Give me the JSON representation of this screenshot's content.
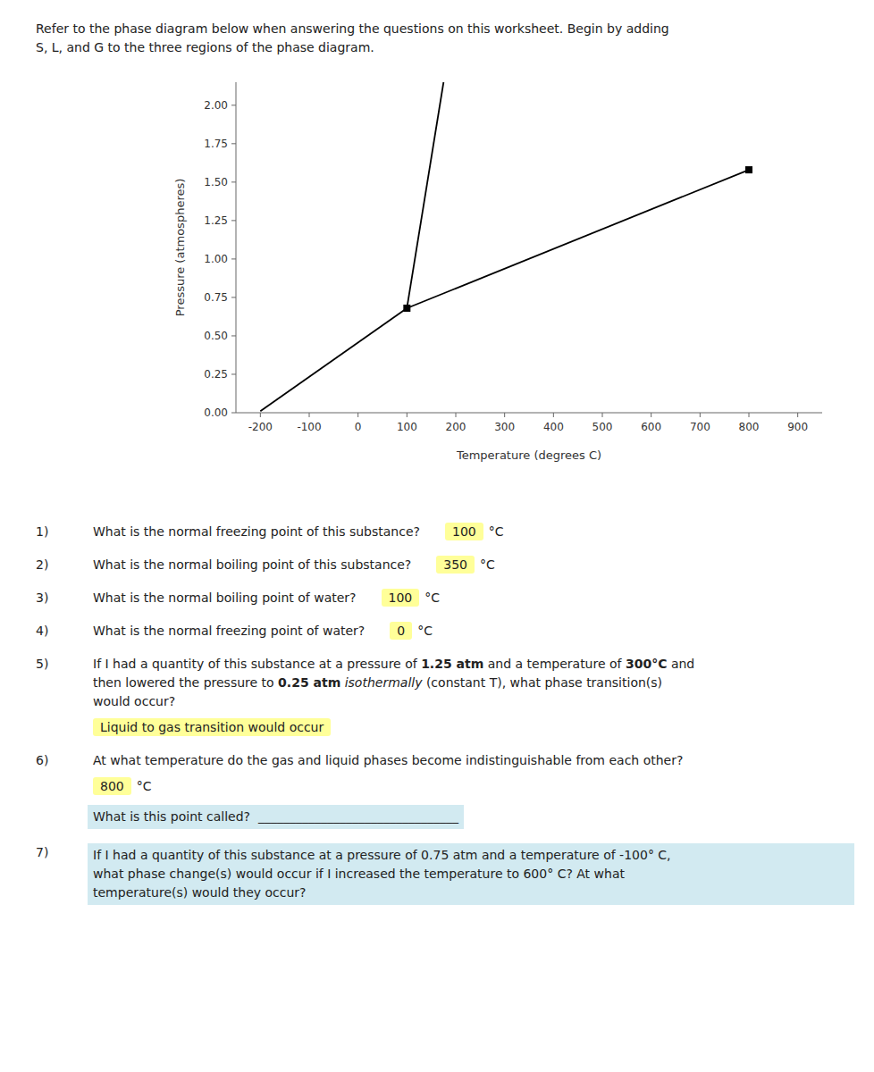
{
  "chart_data": {
    "type": "line",
    "xlabel": "Temperature (degrees C)",
    "ylabel": "Pressure (atmospheres)",
    "xlim": [
      -250,
      950
    ],
    "ylim": [
      0.0,
      2.15
    ],
    "xticks": [
      -200,
      -100,
      0,
      100,
      200,
      300,
      400,
      500,
      600,
      700,
      800,
      900
    ],
    "yticks": [
      {
        "value": 0.0,
        "label": "0.00"
      },
      0.25,
      {
        "value": 0.5,
        "label": "0.50"
      },
      0.75,
      {
        "value": 1.0,
        "label": "1.00"
      },
      1.25,
      {
        "value": 1.5,
        "label": "1.50"
      },
      1.75,
      {
        "value": 2.0,
        "label": "2.00"
      }
    ],
    "grid": false,
    "series": [
      {
        "type": "line",
        "color": "#000000",
        "x": [
          -200,
          100
        ],
        "values": [
          0.01,
          0.68
        ]
      },
      {
        "type": "line",
        "color": "#000000",
        "x": [
          100,
          800
        ],
        "values": [
          0.68,
          1.58
        ]
      },
      {
        "type": "line",
        "color": "#000000",
        "x": [
          100,
          175
        ],
        "values": [
          0.68,
          2.15
        ]
      },
      {
        "type": "scatter",
        "marker": "square",
        "color": "#000000",
        "x": [
          100,
          800
        ],
        "values": [
          0.68,
          1.58
        ]
      }
    ],
    "header": [
      "Refer to the phase diagram below when answering the questions on this worksheet. Begin by adding",
      "S, L, and G to the three regions of the phase diagram."
    ],
    "questions": [
      {
        "number": "1)",
        "lines": [
          [
            "What is the normal freezing point of this substance?"
          ]
        ],
        "answer": {
          "text": "100",
          "unit": "°C",
          "color": "#ffff99"
        }
      },
      {
        "number": "2)",
        "lines": [
          [
            "What is the normal boiling point of this substance?"
          ]
        ],
        "answer": {
          "text": "350",
          "unit": "°C",
          "color": "#ffff99"
        }
      },
      {
        "number": "3)",
        "lines": [
          [
            "What is the normal boiling point of water?"
          ]
        ],
        "answer": {
          "text": "100",
          "unit": "°C",
          "color": "#ffff99"
        }
      },
      {
        "number": "4)",
        "lines": [
          [
            "What is the normal freezing point of water?"
          ]
        ],
        "answer": {
          "text": "0",
          "unit": "°C",
          "color": "#ffff99"
        }
      },
      {
        "number": "5)",
        "lines": [
          [
            "If I had a quantity of this substance at a pressure of ",
            {
              "text": "1.25 atm",
              "font": "bold"
            },
            " and a temperature of ",
            {
              "text": "300°C",
              "font": "bold"
            },
            " and"
          ],
          [
            "then lowered the pressure to ",
            {
              "text": "0.25 atm",
              "font": "bold"
            },
            " ",
            {
              "text": "isothermally",
              "font": "italic"
            },
            " (constant T), what phase transition(s)"
          ],
          [
            "would occur?"
          ]
        ],
        "answer": {
          "text": "Liquid to gas transition would occur",
          "color": "#ffff99"
        }
      },
      {
        "number": "6)",
        "lines": [
          [
            "At what temperature do the gas and liquid phases become indistinguishable from each other?"
          ]
        ],
        "answer": {
          "text": "800",
          "unit": "°C",
          "color": "#ffff99"
        },
        "followup": {
          "lines": [
            [
              "What is this point called?  ________________________________"
            ]
          ],
          "color": "#add8e6"
        }
      },
      {
        "number": "7)",
        "color": "#add8e6",
        "lines": [
          [
            "If I had a quantity of this substance at a pressure of 0.75 atm and a temperature of -100° C,"
          ],
          [
            "what phase change(s) would occur if I increased the temperature to 600° C? At what"
          ],
          [
            "temperature(s) would they occur?"
          ]
        ]
      }
    ]
  }
}
